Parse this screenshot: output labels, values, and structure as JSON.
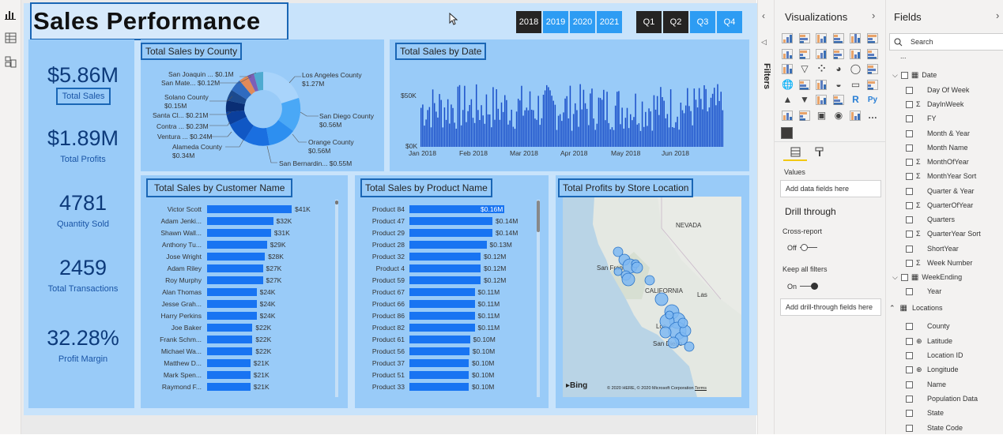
{
  "report": {
    "title": "Sales Performance",
    "years": [
      "2018",
      "2019",
      "2020",
      "2021"
    ],
    "quarters": [
      "Q1",
      "Q2",
      "Q3",
      "Q4"
    ],
    "kpis": [
      {
        "value": "$5.86M",
        "label": "Total Sales"
      },
      {
        "value": "$1.89M",
        "label": "Total Profits"
      },
      {
        "value": "4781",
        "label": "Quantity Sold"
      },
      {
        "value": "2459",
        "label": "Total Transactions"
      },
      {
        "value": "32.28%",
        "label": "Profit Margin"
      }
    ],
    "county_chart": {
      "title": "Total Sales by County",
      "labels": [
        {
          "name": "San Joaquin ...",
          "value": "$0.1M"
        },
        {
          "name": "San Mate...",
          "value": "$0.12M"
        },
        {
          "name": "Solano County",
          "value": "$0.15M"
        },
        {
          "name": "Santa Cl...",
          "value": "$0.21M"
        },
        {
          "name": "Contra ...",
          "value": "$0.23M"
        },
        {
          "name": "Ventura ...",
          "value": "$0.24M"
        },
        {
          "name": "Alameda County",
          "value": "$0.34M"
        },
        {
          "name": "Los Angeles County",
          "value": "$1.27M"
        },
        {
          "name": "San Diego County",
          "value": "$0.56M"
        },
        {
          "name": "Orange County",
          "value": "$0.56M"
        },
        {
          "name": "San Bernardin...",
          "value": "$0.55M"
        }
      ]
    },
    "date_chart": {
      "title": "Total Sales by Date",
      "yticks": [
        "$50K",
        "$0K"
      ],
      "xticks": [
        "Jan 2018",
        "Feb 2018",
        "Mar 2018",
        "Apr 2018",
        "May 2018",
        "Jun 2018"
      ]
    },
    "customer_chart": {
      "title": "Total Sales by Customer Name",
      "rows": [
        {
          "name": "Victor Scott",
          "value": "$41K",
          "v": 41
        },
        {
          "name": "Adam Jenki...",
          "value": "$32K",
          "v": 32
        },
        {
          "name": "Shawn Wall...",
          "value": "$31K",
          "v": 31
        },
        {
          "name": "Anthony Tu...",
          "value": "$29K",
          "v": 29
        },
        {
          "name": "Jose Wright",
          "value": "$28K",
          "v": 28
        },
        {
          "name": "Adam Riley",
          "value": "$27K",
          "v": 27
        },
        {
          "name": "Roy Murphy",
          "value": "$27K",
          "v": 27
        },
        {
          "name": "Alan Thomas",
          "value": "$24K",
          "v": 24
        },
        {
          "name": "Jesse Grah...",
          "value": "$24K",
          "v": 24
        },
        {
          "name": "Harry Perkins",
          "value": "$24K",
          "v": 24
        },
        {
          "name": "Joe Baker",
          "value": "$22K",
          "v": 22
        },
        {
          "name": "Frank Schm...",
          "value": "$22K",
          "v": 22
        },
        {
          "name": "Michael Wa...",
          "value": "$22K",
          "v": 22
        },
        {
          "name": "Matthew D...",
          "value": "$21K",
          "v": 21
        },
        {
          "name": "Mark Spen...",
          "value": "$21K",
          "v": 21
        },
        {
          "name": "Raymond F...",
          "value": "$21K",
          "v": 21
        }
      ]
    },
    "product_chart": {
      "title": "Total Sales by Product Name",
      "rows": [
        {
          "name": "Product 84",
          "value": "$0.16M",
          "v": 16
        },
        {
          "name": "Product 47",
          "value": "$0.14M",
          "v": 14
        },
        {
          "name": "Product 29",
          "value": "$0.14M",
          "v": 14
        },
        {
          "name": "Product 28",
          "value": "$0.13M",
          "v": 13
        },
        {
          "name": "Product 32",
          "value": "$0.12M",
          "v": 12
        },
        {
          "name": "Product 4",
          "value": "$0.12M",
          "v": 12
        },
        {
          "name": "Product 59",
          "value": "$0.12M",
          "v": 12
        },
        {
          "name": "Product 67",
          "value": "$0.11M",
          "v": 11
        },
        {
          "name": "Product 66",
          "value": "$0.11M",
          "v": 11
        },
        {
          "name": "Product 86",
          "value": "$0.11M",
          "v": 11
        },
        {
          "name": "Product 82",
          "value": "$0.11M",
          "v": 11
        },
        {
          "name": "Product 61",
          "value": "$0.10M",
          "v": 10.2
        },
        {
          "name": "Product 56",
          "value": "$0.10M",
          "v": 10.1
        },
        {
          "name": "Product 37",
          "value": "$0.10M",
          "v": 10
        },
        {
          "name": "Product 51",
          "value": "$0.10M",
          "v": 10
        },
        {
          "name": "Product 33",
          "value": "$0.10M",
          "v": 10
        }
      ]
    },
    "map": {
      "title": "Total Profits by Store Location",
      "labels": [
        "NEVADA",
        "San Fran",
        "CALIFORNIA",
        "Las",
        "Los",
        "San Diego"
      ],
      "bing": "Bing",
      "copyright": "© 2020 HERE, © 2020 Microsoft Corporation",
      "terms": "Terms"
    }
  },
  "filters_label": "Filters",
  "visualizations": {
    "title": "Visualizations",
    "values_label": "Values",
    "values_placeholder": "Add data fields here",
    "drill_title": "Drill through",
    "cross_report": "Cross-report",
    "cross_state": "Off",
    "keep_filters": "Keep all filters",
    "keep_state": "On",
    "drill_placeholder": "Add drill-through fields here"
  },
  "fields": {
    "title": "Fields",
    "search_placeholder": "Search",
    "ellipsis": "...",
    "items": [
      {
        "label": "Date",
        "type": "table-expanded",
        "sigma": false
      },
      {
        "label": "Day Of Week",
        "sigma": false
      },
      {
        "label": "DayInWeek",
        "sigma": true
      },
      {
        "label": "FY",
        "sigma": false
      },
      {
        "label": "Month & Year",
        "sigma": false
      },
      {
        "label": "Month Name",
        "sigma": false
      },
      {
        "label": "MonthOfYear",
        "sigma": true
      },
      {
        "label": "MonthYear Sort",
        "sigma": true
      },
      {
        "label": "Quarter & Year",
        "sigma": false
      },
      {
        "label": "QuarterOfYear",
        "sigma": true
      },
      {
        "label": "Quarters",
        "sigma": false
      },
      {
        "label": "QuarterYear Sort",
        "sigma": true
      },
      {
        "label": "ShortYear",
        "sigma": false
      },
      {
        "label": "Week Number",
        "sigma": true
      },
      {
        "label": "WeekEnding",
        "type": "table-expanded",
        "sigma": false
      },
      {
        "label": "Year",
        "sigma": false
      },
      {
        "label": "Locations",
        "type": "table"
      },
      {
        "label": "County",
        "sigma": false
      },
      {
        "label": "Latitude",
        "globe": true
      },
      {
        "label": "Location ID",
        "sigma": false
      },
      {
        "label": "Longitude",
        "globe": true
      },
      {
        "label": "Name",
        "sigma": false
      },
      {
        "label": "Population Data",
        "sigma": false
      },
      {
        "label": "State",
        "sigma": false
      },
      {
        "label": "State Code",
        "sigma": false
      }
    ]
  },
  "colors": {
    "accent": "#1874f2",
    "panel": "#99cbf8",
    "frame": "#1a66b5",
    "slicer_dark": "#252423",
    "slicer_blue": "#2d9cf3"
  }
}
